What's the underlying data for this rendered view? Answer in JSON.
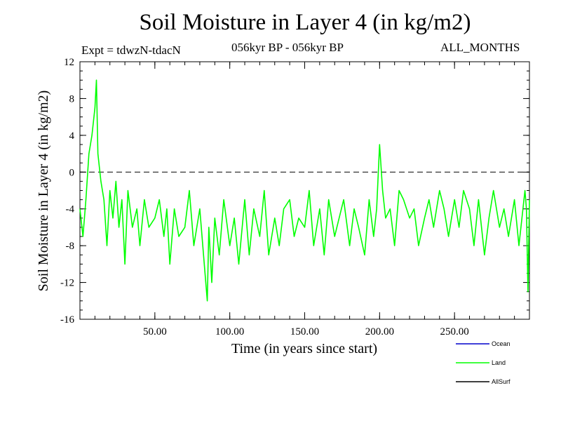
{
  "header": {
    "title": "Soil Moisture in Layer 4 (in kg/m2)",
    "experiment": "Expt = tdwzN-tdacN",
    "period": "056kyr BP - 056kyr BP",
    "months": "ALL_MONTHS"
  },
  "chart_data": {
    "type": "line",
    "title": "Soil Moisture in Layer 4 (in kg/m2)",
    "xlabel": "Time (in years since start)",
    "ylabel": "Soil Moisture in Layer 4 (in kg/m2)",
    "xlim": [
      0,
      300
    ],
    "ylim": [
      -16,
      12
    ],
    "x_ticks": [
      50,
      100,
      150,
      200,
      250
    ],
    "x_tick_labels": [
      "50.00",
      "100.00",
      "150.00",
      "200.00",
      "250.00"
    ],
    "y_ticks": [
      12,
      8,
      4,
      0,
      -4,
      -8,
      -12,
      -16
    ],
    "y_tick_labels": [
      "12",
      "8",
      "4",
      "0",
      "-4",
      "-8",
      "-12",
      "-16"
    ],
    "reference_line": {
      "y": 0,
      "style": "dashed"
    },
    "legend_position": "bottom-right",
    "series": [
      {
        "name": "Ocean",
        "color": "#0000cc",
        "x": [],
        "values": []
      },
      {
        "name": "Land",
        "color": "#00ff00",
        "x": [
          0,
          2,
          4,
          6,
          8,
          10,
          11,
          12,
          14,
          16,
          18,
          20,
          22,
          24,
          26,
          28,
          30,
          32,
          35,
          38,
          40,
          43,
          46,
          50,
          53,
          56,
          58,
          60,
          63,
          66,
          70,
          73,
          76,
          80,
          83,
          85,
          86,
          88,
          90,
          93,
          96,
          100,
          103,
          106,
          110,
          113,
          116,
          120,
          123,
          126,
          130,
          133,
          136,
          140,
          143,
          146,
          150,
          153,
          156,
          160,
          163,
          166,
          170,
          173,
          176,
          180,
          183,
          186,
          190,
          193,
          196,
          198,
          200,
          202,
          204,
          207,
          210,
          213,
          216,
          220,
          223,
          226,
          230,
          233,
          236,
          240,
          243,
          246,
          250,
          253,
          256,
          260,
          263,
          266,
          270,
          273,
          276,
          280,
          283,
          286,
          290,
          293,
          295,
          297,
          298,
          299,
          300
        ],
        "values": [
          -4,
          -7,
          -3,
          2,
          4,
          7,
          10,
          2,
          -1,
          -3,
          -8,
          -2,
          -5,
          -1,
          -6,
          -3,
          -10,
          -2,
          -6,
          -4,
          -8,
          -3,
          -6,
          -5,
          -3,
          -7,
          -4,
          -10,
          -4,
          -7,
          -6,
          -2,
          -8,
          -4,
          -10,
          -14,
          -6,
          -12,
          -5,
          -9,
          -3,
          -8,
          -5,
          -10,
          -3,
          -9,
          -4,
          -7,
          -2,
          -9,
          -5,
          -8,
          -4,
          -3,
          -7,
          -5,
          -6,
          -2,
          -8,
          -4,
          -9,
          -3,
          -7,
          -5,
          -3,
          -8,
          -4,
          -6,
          -9,
          -3,
          -7,
          -4,
          3,
          -2,
          -5,
          -4,
          -8,
          -2,
          -3,
          -5,
          -4,
          -8,
          -5,
          -3,
          -6,
          -2,
          -4,
          -7,
          -3,
          -6,
          -2,
          -4,
          -8,
          -3,
          -9,
          -5,
          -2,
          -6,
          -4,
          -7,
          -3,
          -8,
          -5,
          -2,
          -4,
          -13,
          -3
        ]
      },
      {
        "name": "AllSurf",
        "color": "#000000",
        "x": [],
        "values": []
      }
    ]
  }
}
